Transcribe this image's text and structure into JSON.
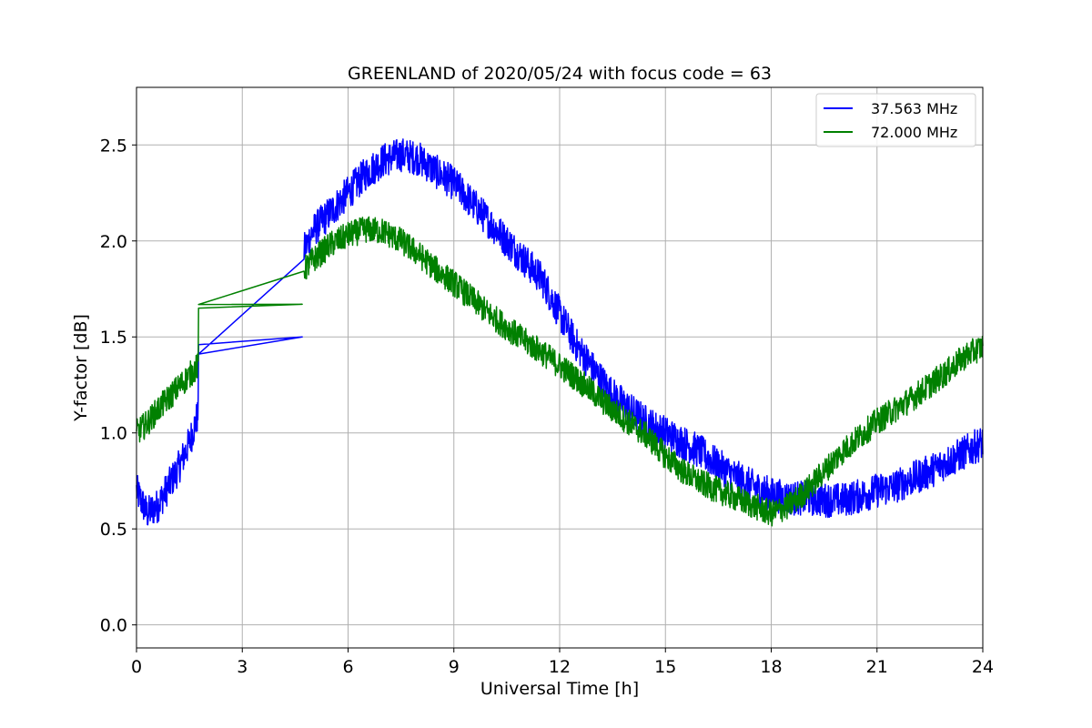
{
  "chart_data": {
    "type": "line",
    "title": "GREENLAND of 2020/05/24 with focus code = 63",
    "xlabel": "Universal Time [h]",
    "ylabel": "Y-factor [dB]",
    "xlim": [
      0,
      24
    ],
    "ylim": [
      -0.12,
      2.8
    ],
    "xticks": [
      0,
      3,
      6,
      9,
      12,
      15,
      18,
      21,
      24
    ],
    "yticks": [
      0.0,
      0.5,
      1.0,
      1.5,
      2.0,
      2.5
    ],
    "xtick_labels": [
      "0",
      "3",
      "6",
      "9",
      "12",
      "15",
      "18",
      "21",
      "24"
    ],
    "ytick_labels": [
      "0.0",
      "0.5",
      "1.0",
      "1.5",
      "2.0",
      "2.5"
    ],
    "grid": true,
    "legend_position": "top-right",
    "series": [
      {
        "name": "37.563 MHz",
        "color": "#0000ff",
        "x": [
          0.0,
          0.3,
          0.6,
          0.9,
          1.2,
          1.5,
          1.75,
          1.76,
          4.7,
          4.75,
          5.0,
          5.5,
          6.0,
          6.5,
          7.0,
          7.5,
          8.0,
          8.5,
          9.0,
          9.5,
          10.0,
          10.5,
          11.0,
          11.5,
          12.0,
          12.5,
          13.0,
          13.5,
          14.0,
          14.5,
          15.0,
          15.5,
          16.0,
          16.5,
          17.0,
          17.5,
          18.0,
          18.5,
          19.0,
          19.5,
          20.0,
          20.5,
          21.0,
          21.5,
          22.0,
          22.5,
          23.0,
          23.5,
          24.0
        ],
        "y": [
          0.7,
          0.58,
          0.62,
          0.72,
          0.82,
          0.95,
          1.1,
          1.46,
          1.5,
          1.95,
          2.05,
          2.15,
          2.25,
          2.35,
          2.42,
          2.45,
          2.43,
          2.36,
          2.3,
          2.2,
          2.1,
          2.0,
          1.9,
          1.8,
          1.62,
          1.45,
          1.32,
          1.2,
          1.12,
          1.05,
          1.0,
          0.95,
          0.9,
          0.83,
          0.77,
          0.72,
          0.68,
          0.66,
          0.66,
          0.65,
          0.65,
          0.67,
          0.7,
          0.72,
          0.76,
          0.8,
          0.85,
          0.9,
          0.95
        ],
        "noise": 0.09
      },
      {
        "name": "72.000 MHz",
        "color": "#008000",
        "x": [
          0.0,
          0.3,
          0.6,
          0.9,
          1.2,
          1.5,
          1.75,
          1.76,
          4.7,
          4.75,
          5.0,
          5.5,
          6.0,
          6.5,
          7.0,
          7.5,
          8.0,
          8.5,
          9.0,
          9.5,
          10.0,
          10.5,
          11.0,
          11.5,
          12.0,
          12.5,
          13.0,
          13.5,
          14.0,
          14.5,
          15.0,
          15.5,
          16.0,
          16.5,
          17.0,
          17.5,
          18.0,
          18.5,
          19.0,
          19.5,
          20.0,
          20.5,
          21.0,
          21.5,
          22.0,
          22.5,
          23.0,
          23.5,
          24.0
        ],
        "y": [
          1.0,
          1.05,
          1.12,
          1.18,
          1.24,
          1.3,
          1.35,
          1.65,
          1.67,
          1.85,
          1.9,
          1.98,
          2.03,
          2.06,
          2.05,
          2.0,
          1.93,
          1.85,
          1.78,
          1.7,
          1.62,
          1.55,
          1.48,
          1.42,
          1.35,
          1.28,
          1.2,
          1.12,
          1.05,
          0.98,
          0.88,
          0.8,
          0.74,
          0.7,
          0.66,
          0.62,
          0.58,
          0.62,
          0.7,
          0.8,
          0.9,
          0.98,
          1.06,
          1.12,
          1.18,
          1.25,
          1.32,
          1.4,
          1.45
        ],
        "noise": 0.07
      }
    ]
  }
}
